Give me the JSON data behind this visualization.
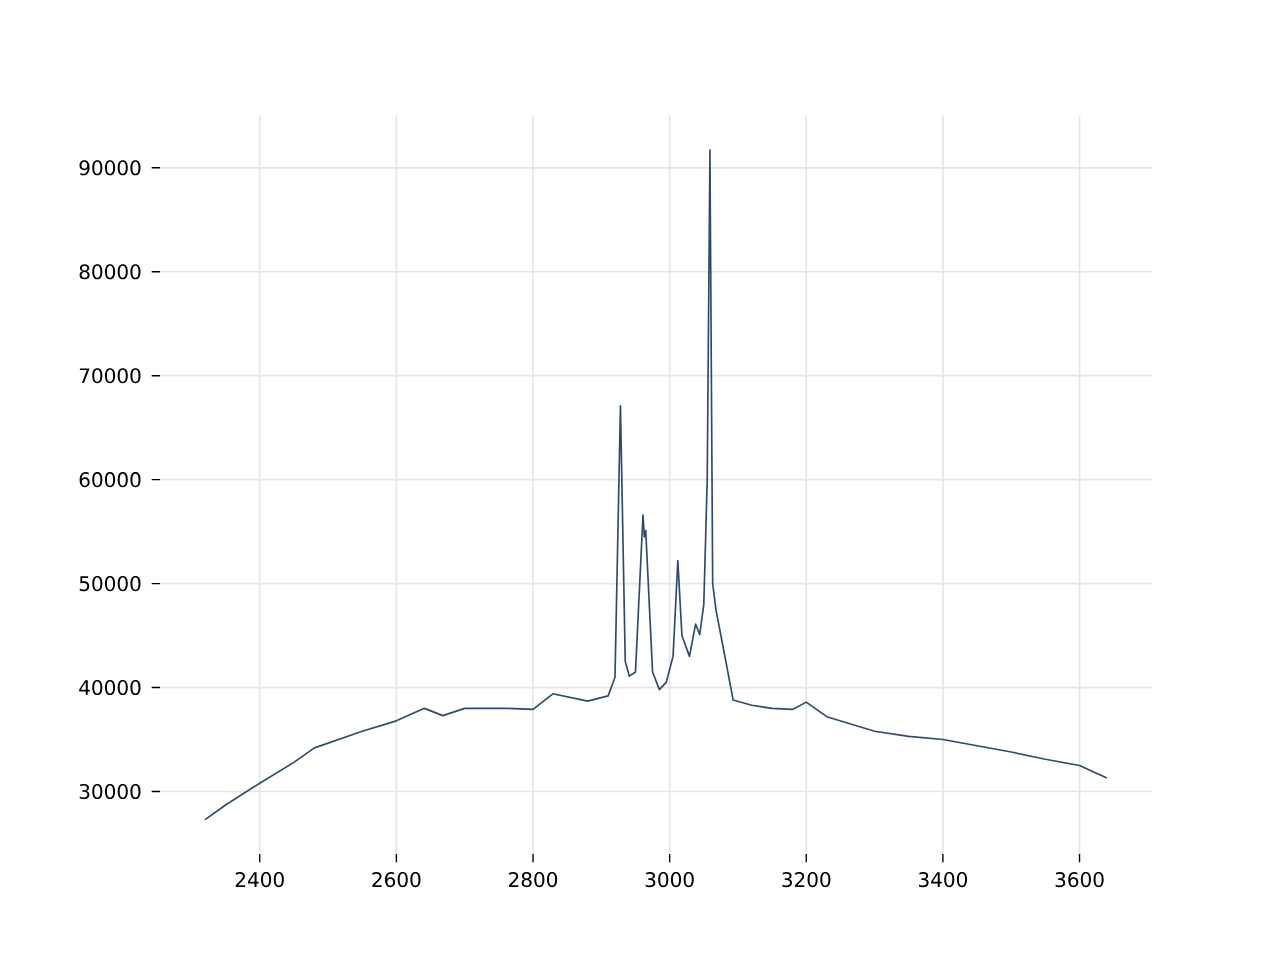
{
  "chart_data": {
    "type": "line",
    "x": [
      2320,
      2350,
      2400,
      2450,
      2480,
      2550,
      2600,
      2641,
      2668,
      2700,
      2760,
      2800,
      2829,
      2880,
      2910,
      2920,
      2928,
      2935,
      2941,
      2950,
      2961,
      2963,
      2965,
      2975,
      2985,
      2995,
      3005,
      3012,
      3018,
      3029,
      3038,
      3044,
      3050,
      3055,
      3059,
      3063,
      3068,
      3078,
      3093,
      3120,
      3150,
      3180,
      3200,
      3230,
      3300,
      3350,
      3400,
      3450,
      3500,
      3550,
      3600,
      3640
    ],
    "series": [
      {
        "color": "#2e4a6e",
        "values": [
          27300,
          28700,
          30800,
          32800,
          34200,
          35800,
          36800,
          38000,
          37300,
          38000,
          38000,
          37900,
          39400,
          38700,
          39200,
          41000,
          67100,
          42500,
          41100,
          41500,
          56600,
          54500,
          55100,
          41500,
          39800,
          40500,
          43000,
          52200,
          45000,
          43000,
          46100,
          45100,
          48000,
          60000,
          91700,
          50000,
          47400,
          44000,
          38800,
          38300,
          38000,
          37900,
          38600,
          37200,
          35800,
          35300,
          35000,
          34400,
          33800,
          33100,
          32500,
          31300
        ]
      }
    ],
    "xlim": [
      2254,
      3706
    ],
    "ylim": [
      24000,
      95000
    ],
    "xticks": [
      2400,
      2600,
      2800,
      3000,
      3200,
      3400,
      3600
    ],
    "yticks": [
      30000,
      40000,
      50000,
      60000,
      70000,
      80000,
      90000
    ],
    "grid": true
  }
}
